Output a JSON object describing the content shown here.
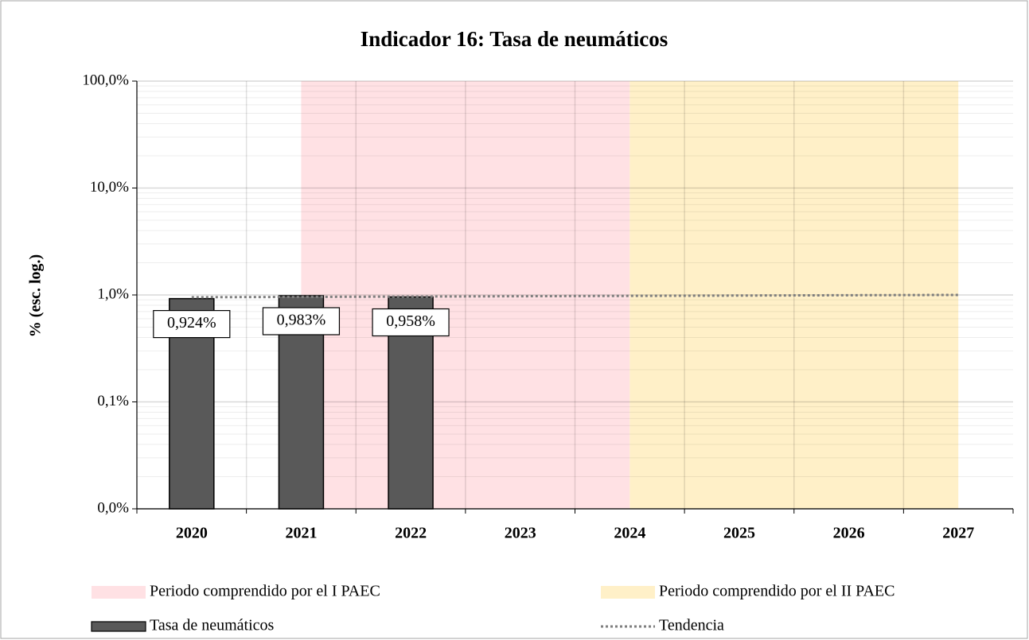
{
  "chart_data": {
    "type": "bar",
    "title": "Indicador 16: Tasa de neumáticos",
    "y_label": "% (esc. log.)",
    "categories": [
      "2020",
      "2021",
      "2022",
      "2023",
      "2024",
      "2025",
      "2026",
      "2027"
    ],
    "series": [
      {
        "name": "Tasa de neumáticos",
        "type": "bar",
        "color": "#595959",
        "values": [
          0.924,
          0.983,
          0.958,
          null,
          null,
          null,
          null,
          null
        ],
        "value_labels": [
          "0,924%",
          "0,983%",
          "0,958%",
          null,
          null,
          null,
          null,
          null
        ]
      },
      {
        "name": "Tendencia",
        "type": "line",
        "color": "#7f7f7f",
        "dash": "dotted",
        "values": [
          0.952,
          0.959,
          0.966,
          0.973,
          0.98,
          0.987,
          0.994,
          1.001
        ]
      }
    ],
    "bands": [
      {
        "name": "Periodo comprendido por el I PAEC",
        "color": "#ffe1e4",
        "from": "2021",
        "to": "2024"
      },
      {
        "name": "Periodo comprendido por el II PAEC",
        "color": "#fff0c8",
        "from": "2024",
        "to": "2027"
      }
    ],
    "ylim": [
      0.01,
      100
    ],
    "yticks": [
      {
        "value": 0.01,
        "label": "0,0%"
      },
      {
        "value": 0.1,
        "label": "0,1%"
      },
      {
        "value": 1,
        "label": "1,0%"
      },
      {
        "value": 10,
        "label": "10,0%"
      },
      {
        "value": 100,
        "label": "100,0%"
      }
    ],
    "log_scale": true,
    "grid": true
  }
}
